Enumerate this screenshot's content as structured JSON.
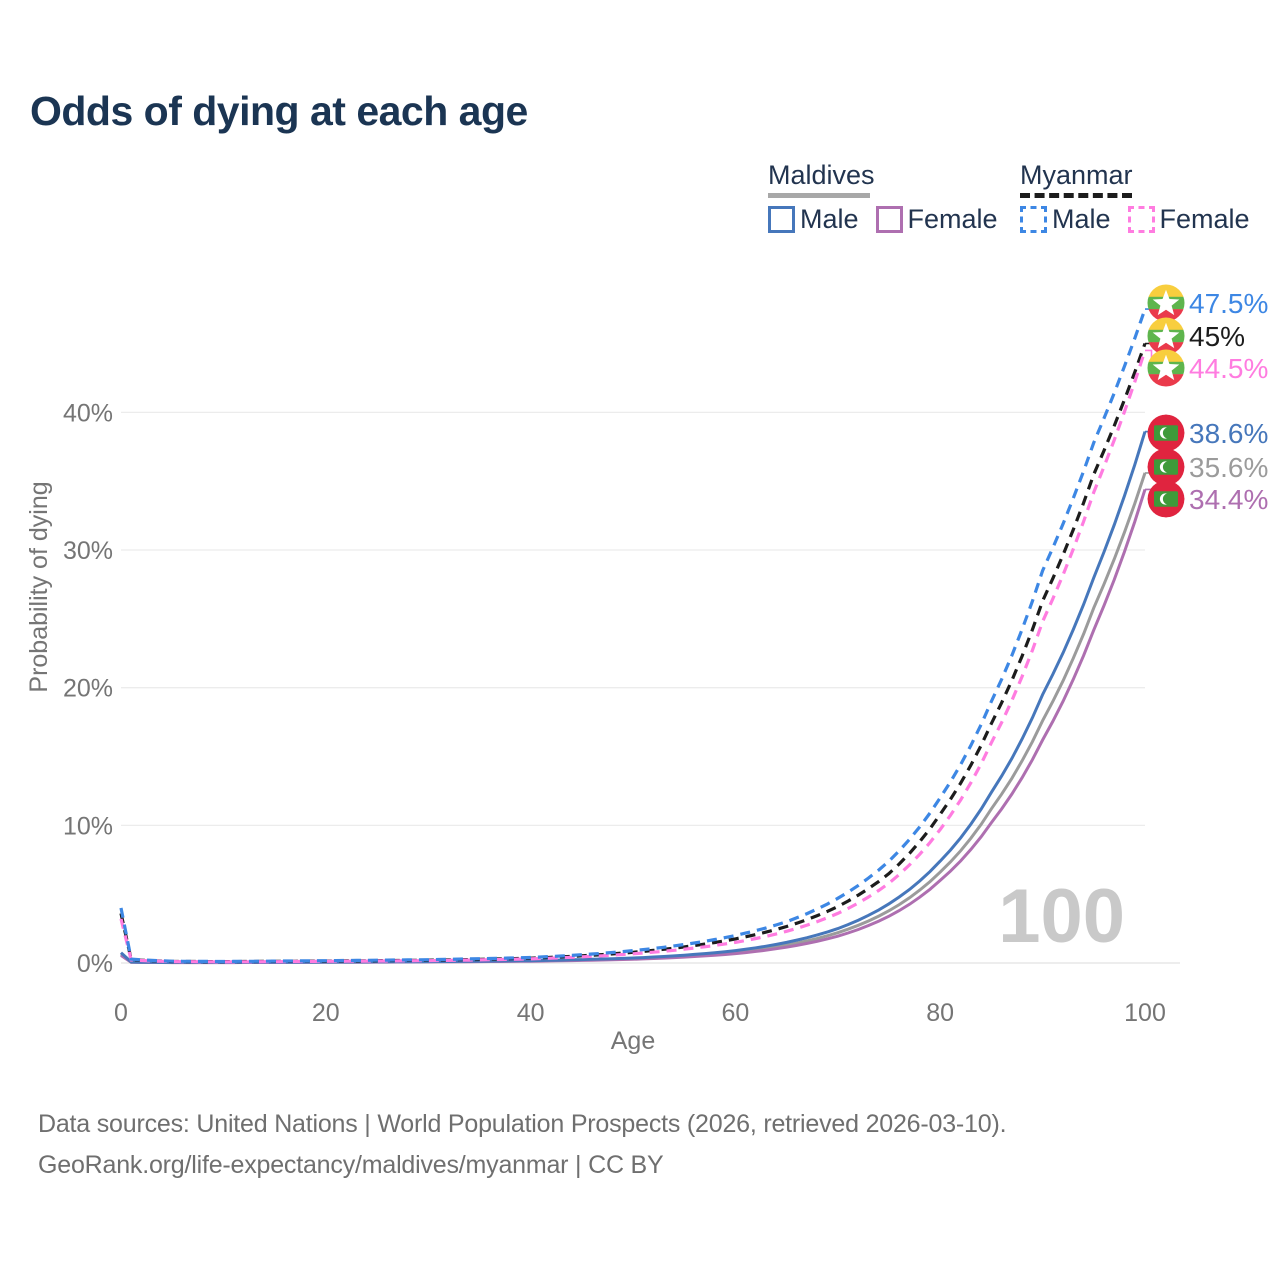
{
  "title": "Odds of dying at each age",
  "legend": {
    "maldives": {
      "title": "Maldives",
      "male_label": "Male",
      "female_label": "Female"
    },
    "myanmar": {
      "title": "Myanmar",
      "male_label": "Male",
      "female_label": "Female"
    }
  },
  "colors": {
    "title_text": "#1b3553",
    "legend_text": "#22344f",
    "axis_text": "#757575",
    "gridline": "#ececec",
    "baseline": "#e2e2e2",
    "watermark": "#c9c9c9",
    "footer_text": "#6f6f6f"
  },
  "chart_data": {
    "type": "line",
    "title": "Odds of dying at each age",
    "xlabel": "Age",
    "ylabel": "Probability of dying",
    "x_ticks": [
      0,
      20,
      40,
      60,
      80,
      100
    ],
    "y_ticks": [
      {
        "value": 0,
        "label": "0%"
      },
      {
        "value": 10,
        "label": "10%"
      },
      {
        "value": 20,
        "label": "20%"
      },
      {
        "value": 30,
        "label": "30%"
      },
      {
        "value": 40,
        "label": "40%"
      }
    ],
    "xlim": [
      0,
      100
    ],
    "ylim_pct": [
      0,
      48
    ],
    "grid": "horizontal-only",
    "legend_position": "top-right",
    "watermark": "100",
    "anchor_ages": [
      0,
      1,
      5,
      10,
      20,
      30,
      40,
      50,
      60,
      65,
      70,
      75,
      80,
      85,
      90,
      95,
      100
    ],
    "series": [
      {
        "id": "myanmar-male",
        "country": "Myanmar",
        "sex": "Male",
        "color": "#3d87e4",
        "dash": true,
        "flag": "myanmar-flag",
        "end_label": "47.5%",
        "values_pct": [
          4.0,
          0.28,
          0.13,
          0.11,
          0.17,
          0.24,
          0.4,
          0.9,
          2.0,
          3.0,
          4.7,
          7.4,
          12.0,
          19.0,
          28.5,
          37.8,
          47.5
        ]
      },
      {
        "id": "myanmar-total",
        "country": "Myanmar",
        "sex": "Both",
        "color": "#1c1c1c",
        "dash": true,
        "flag": "myanmar-flag",
        "end_label": "45%",
        "values_pct": [
          3.6,
          0.25,
          0.11,
          0.1,
          0.14,
          0.2,
          0.35,
          0.78,
          1.75,
          2.65,
          4.1,
          6.5,
          10.8,
          17.4,
          26.3,
          35.5,
          45.0
        ]
      },
      {
        "id": "myanmar-female",
        "country": "Myanmar",
        "sex": "Female",
        "color": "#ff7ce0",
        "dash": true,
        "flag": "myanmar-flag",
        "end_label": "44.5%",
        "values_pct": [
          3.2,
          0.22,
          0.1,
          0.08,
          0.12,
          0.17,
          0.3,
          0.67,
          1.5,
          2.3,
          3.6,
          5.8,
          9.7,
          16.0,
          24.8,
          34.2,
          44.5
        ]
      },
      {
        "id": "maldives-male",
        "country": "Maldives",
        "sex": "Male",
        "color": "#4677bb",
        "dash": false,
        "flag": "maldives-flag",
        "end_label": "38.6%",
        "values_pct": [
          0.75,
          0.07,
          0.04,
          0.04,
          0.07,
          0.1,
          0.17,
          0.36,
          0.9,
          1.5,
          2.5,
          4.3,
          7.4,
          12.4,
          19.5,
          28.0,
          38.6
        ]
      },
      {
        "id": "maldives-total",
        "country": "Maldives",
        "sex": "Both",
        "color": "#9b9b9b",
        "dash": false,
        "flag": "maldives-flag",
        "end_label": "35.6%",
        "values_pct": [
          0.65,
          0.06,
          0.035,
          0.035,
          0.06,
          0.09,
          0.15,
          0.31,
          0.78,
          1.3,
          2.2,
          3.8,
          6.6,
          11.2,
          17.6,
          25.8,
          35.6
        ]
      },
      {
        "id": "maldives-female",
        "country": "Maldives",
        "sex": "Female",
        "color": "#ae6fb0",
        "dash": false,
        "flag": "maldives-flag",
        "end_label": "34.4%",
        "values_pct": [
          0.55,
          0.05,
          0.03,
          0.03,
          0.05,
          0.08,
          0.13,
          0.27,
          0.68,
          1.15,
          1.95,
          3.4,
          6.0,
          10.2,
          16.2,
          24.2,
          34.4
        ]
      }
    ]
  },
  "footer": {
    "line1": "Data sources: United Nations | World Population Prospects (2026, retrieved 2026-03-10).",
    "line2": "GeoRank.org/life-expectancy/maldives/myanmar | CC BY"
  }
}
